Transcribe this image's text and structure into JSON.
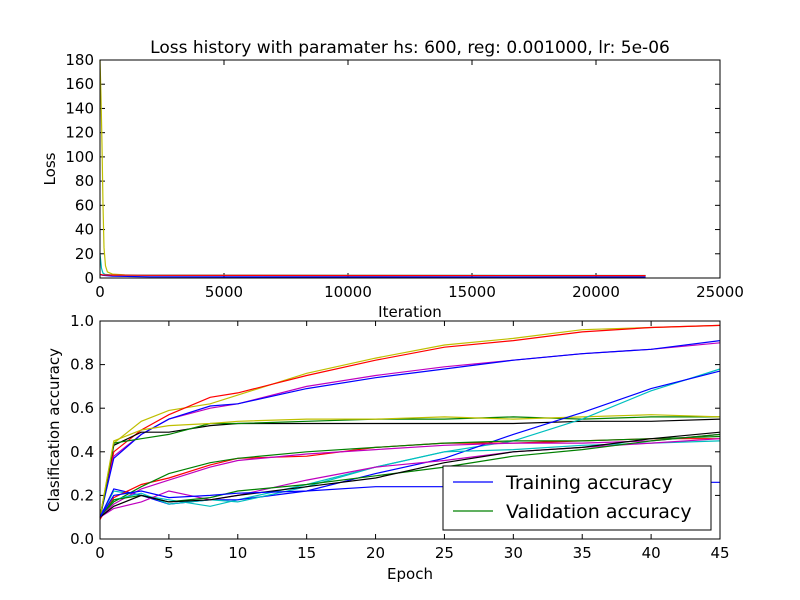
{
  "chart_data": [
    {
      "type": "line",
      "title": "Loss history with paramater hs: 600, reg: 0.001000, lr: 5e-06",
      "xlabel": "Iteration",
      "ylabel": "Loss",
      "xlim": [
        0,
        25000
      ],
      "ylim": [
        0,
        180
      ],
      "xticks": [
        0,
        5000,
        10000,
        15000,
        20000,
        25000
      ],
      "yticks": [
        0,
        20,
        40,
        60,
        80,
        100,
        120,
        140,
        160,
        180
      ],
      "grid": false,
      "series": [
        {
          "color": "#bfbf00",
          "x": [
            0,
            40,
            80,
            120,
            160,
            220,
            300,
            500,
            1000,
            2000,
            5000,
            10000,
            22000
          ],
          "y": [
            180,
            150,
            110,
            60,
            25,
            10,
            5,
            3.2,
            2.6,
            2.3,
            2.2,
            2.1,
            2.0
          ]
        },
        {
          "color": "#00bfbf",
          "x": [
            0,
            60,
            120,
            200,
            500,
            22000
          ],
          "y": [
            20,
            8,
            4,
            3,
            2.4,
            2.1
          ]
        },
        {
          "color": "#0000ff",
          "x": [
            0,
            100,
            500,
            2000,
            22000
          ],
          "y": [
            3,
            2.2,
            1.5,
            1.0,
            0.8
          ]
        },
        {
          "color": "#ff0000",
          "x": [
            0,
            100,
            500,
            2000,
            10000,
            22000
          ],
          "y": [
            3,
            2.6,
            2.4,
            2.2,
            2.1,
            2.0
          ]
        }
      ]
    },
    {
      "type": "line",
      "title": "",
      "xlabel": "Epoch",
      "ylabel": "Clasification accuracy",
      "xlim": [
        0,
        45
      ],
      "ylim": [
        0,
        1.0
      ],
      "xticks": [
        0,
        5,
        10,
        15,
        20,
        25,
        30,
        35,
        40,
        45
      ],
      "yticks": [
        "0.0",
        "0.2",
        "0.4",
        "0.6",
        "0.8",
        "1.0"
      ],
      "grid": false,
      "legend": {
        "position": "lower-right",
        "entries": [
          {
            "label": "Training accuracy",
            "color": "#0000ff"
          },
          {
            "label": "Validation accuracy",
            "color": "#008000"
          }
        ]
      },
      "series": [
        {
          "color": "#bfbf00",
          "x": [
            0,
            1,
            3,
            5,
            8,
            10,
            15,
            20,
            25,
            30,
            35,
            40,
            45
          ],
          "y": [
            0.1,
            0.44,
            0.54,
            0.59,
            0.62,
            0.66,
            0.76,
            0.83,
            0.89,
            0.92,
            0.96,
            0.97,
            0.98
          ]
        },
        {
          "color": "#ff0000",
          "x": [
            0,
            1,
            3,
            5,
            8,
            10,
            15,
            20,
            25,
            30,
            35,
            40,
            45
          ],
          "y": [
            0.1,
            0.4,
            0.5,
            0.57,
            0.65,
            0.67,
            0.75,
            0.82,
            0.88,
            0.91,
            0.95,
            0.97,
            0.98
          ]
        },
        {
          "color": "#bf00bf",
          "x": [
            0,
            1,
            3,
            5,
            8,
            10,
            15,
            20,
            25,
            30,
            35,
            40,
            45
          ],
          "y": [
            0.1,
            0.38,
            0.48,
            0.55,
            0.6,
            0.62,
            0.7,
            0.75,
            0.79,
            0.82,
            0.85,
            0.87,
            0.9
          ]
        },
        {
          "color": "#0000ff",
          "x": [
            0,
            1,
            3,
            5,
            8,
            10,
            15,
            20,
            25,
            30,
            35,
            40,
            45
          ],
          "y": [
            0.1,
            0.37,
            0.48,
            0.55,
            0.61,
            0.62,
            0.69,
            0.74,
            0.78,
            0.82,
            0.85,
            0.87,
            0.91
          ]
        },
        {
          "color": "#000000",
          "x": [
            0,
            1,
            3,
            5,
            8,
            10,
            15,
            20,
            25,
            30,
            35,
            40,
            45
          ],
          "y": [
            0.1,
            0.43,
            0.49,
            0.49,
            0.52,
            0.53,
            0.53,
            0.53,
            0.53,
            0.53,
            0.54,
            0.54,
            0.55
          ]
        },
        {
          "color": "#008000",
          "x": [
            0,
            1,
            3,
            5,
            8,
            10,
            15,
            20,
            25,
            30,
            35,
            40,
            45
          ],
          "y": [
            0.09,
            0.44,
            0.46,
            0.48,
            0.53,
            0.53,
            0.54,
            0.55,
            0.55,
            0.56,
            0.55,
            0.56,
            0.56
          ]
        },
        {
          "color": "#bfbf00",
          "x": [
            0,
            1,
            3,
            5,
            8,
            10,
            15,
            20,
            25,
            30,
            35,
            40,
            45
          ],
          "y": [
            0.1,
            0.45,
            0.5,
            0.52,
            0.53,
            0.54,
            0.55,
            0.55,
            0.56,
            0.55,
            0.56,
            0.57,
            0.56
          ]
        },
        {
          "color": "#00bfbf",
          "x": [
            0,
            1,
            3,
            5,
            8,
            10,
            15,
            20,
            25,
            30,
            35,
            40,
            45
          ],
          "y": [
            0.1,
            0.22,
            0.2,
            0.18,
            0.15,
            0.18,
            0.25,
            0.33,
            0.4,
            0.45,
            0.55,
            0.68,
            0.78
          ]
        },
        {
          "color": "#0000ff",
          "x": [
            0,
            1,
            3,
            5,
            8,
            10,
            15,
            20,
            25,
            30,
            35,
            40,
            45
          ],
          "y": [
            0.1,
            0.23,
            0.2,
            0.16,
            0.18,
            0.18,
            0.22,
            0.3,
            0.37,
            0.48,
            0.58,
            0.69,
            0.77
          ]
        },
        {
          "color": "#ff0000",
          "x": [
            0,
            1,
            3,
            5,
            8,
            10,
            15,
            20,
            25,
            30,
            35,
            40,
            45
          ],
          "y": [
            0.09,
            0.19,
            0.25,
            0.28,
            0.34,
            0.37,
            0.38,
            0.42,
            0.44,
            0.44,
            0.45,
            0.46,
            0.46
          ]
        },
        {
          "color": "#008000",
          "x": [
            0,
            1,
            3,
            5,
            8,
            10,
            15,
            20,
            25,
            30,
            35,
            40,
            45
          ],
          "y": [
            0.1,
            0.17,
            0.24,
            0.3,
            0.35,
            0.37,
            0.4,
            0.42,
            0.44,
            0.45,
            0.45,
            0.46,
            0.47
          ]
        },
        {
          "color": "#bf00bf",
          "x": [
            0,
            1,
            3,
            5,
            8,
            10,
            15,
            20,
            25,
            30,
            35,
            40,
            45
          ],
          "y": [
            0.1,
            0.16,
            0.23,
            0.27,
            0.33,
            0.36,
            0.39,
            0.41,
            0.43,
            0.44,
            0.44,
            0.45,
            0.48
          ]
        },
        {
          "color": "#00bfbf",
          "x": [
            0,
            1,
            3,
            5,
            8,
            10,
            15,
            20,
            25,
            30,
            35,
            40,
            45
          ],
          "y": [
            0.1,
            0.18,
            0.21,
            0.16,
            0.18,
            0.17,
            0.24,
            0.33,
            0.4,
            0.41,
            0.43,
            0.44,
            0.45
          ]
        },
        {
          "color": "#bf00bf",
          "x": [
            0,
            1,
            3,
            5,
            8,
            10,
            15,
            20,
            25,
            30,
            35,
            40,
            45
          ],
          "y": [
            0.1,
            0.14,
            0.17,
            0.22,
            0.18,
            0.2,
            0.27,
            0.33,
            0.36,
            0.4,
            0.42,
            0.44,
            0.46
          ]
        },
        {
          "color": "#008000",
          "x": [
            0,
            1,
            3,
            5,
            8,
            10,
            15,
            20,
            25,
            30,
            35,
            40,
            45
          ],
          "y": [
            0.1,
            0.18,
            0.2,
            0.17,
            0.19,
            0.22,
            0.25,
            0.29,
            0.33,
            0.38,
            0.41,
            0.45,
            0.48
          ]
        },
        {
          "color": "#000000",
          "x": [
            0,
            1,
            3,
            5,
            8,
            10,
            15,
            20,
            25,
            30,
            35,
            40,
            45
          ],
          "y": [
            0.1,
            0.15,
            0.2,
            0.17,
            0.18,
            0.2,
            0.24,
            0.28,
            0.35,
            0.4,
            0.42,
            0.46,
            0.49
          ]
        },
        {
          "color": "#0000ff",
          "x": [
            0,
            1,
            3,
            5,
            8,
            10,
            15,
            20,
            25,
            30,
            35,
            40,
            45
          ],
          "y": [
            0.1,
            0.2,
            0.22,
            0.19,
            0.2,
            0.21,
            0.22,
            0.24,
            0.24,
            0.25,
            0.25,
            0.26,
            0.26
          ]
        }
      ]
    }
  ]
}
